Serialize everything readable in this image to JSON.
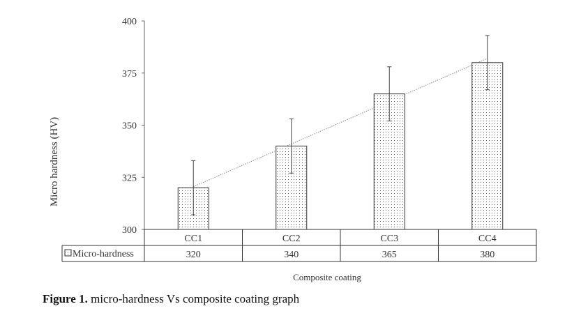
{
  "figure": {
    "caption_label": "Figure 1.",
    "caption_text": " micro-hardness Vs composite coating graph"
  },
  "chart_data": {
    "type": "bar",
    "categories": [
      "CC1",
      "CC2",
      "CC3",
      "CC4"
    ],
    "series": [
      {
        "name": "Micro-hardness",
        "values": [
          320,
          340,
          365,
          380
        ],
        "error": [
          13,
          13,
          13,
          13
        ],
        "pattern": "dotted"
      }
    ],
    "trendline": {
      "type": "linear",
      "style": "dotted"
    },
    "title": "",
    "xlabel": "Composite coating",
    "ylabel": "Micro hardness (HV)",
    "ylim": [
      300,
      400
    ],
    "yticks": [
      300,
      325,
      350,
      375,
      400
    ],
    "grid": false,
    "data_table": true,
    "legend": "data-table-left"
  }
}
